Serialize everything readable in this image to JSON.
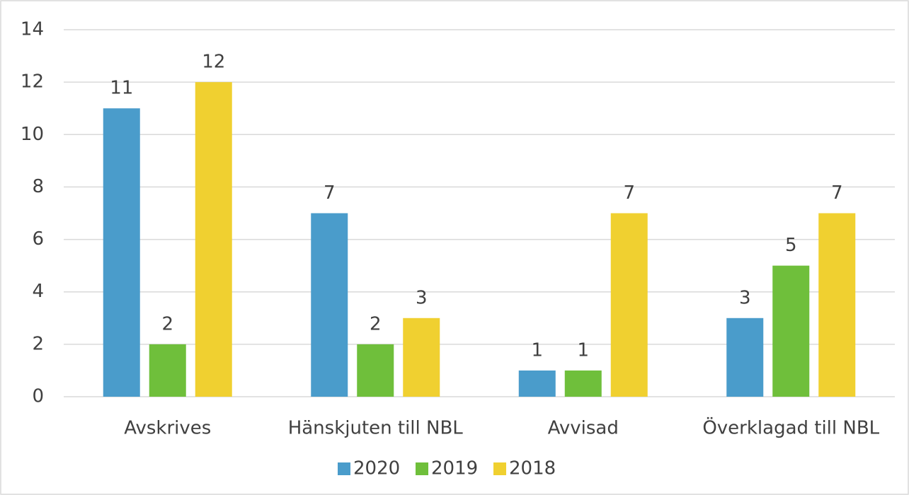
{
  "chart_data": {
    "type": "bar",
    "categories": [
      "Avskrives",
      "Hänskjuten till NBL",
      "Avvisad",
      "Överklagad till NBL"
    ],
    "series": [
      {
        "name": "2020",
        "color": "#4a9ccb",
        "values": [
          11,
          7,
          1,
          3
        ]
      },
      {
        "name": "2019",
        "color": "#6fbf3b",
        "values": [
          2,
          2,
          1,
          5
        ]
      },
      {
        "name": "2018",
        "color": "#f0d030",
        "values": [
          12,
          3,
          7,
          7
        ]
      }
    ],
    "ylim": [
      0,
      14
    ],
    "yticks": [
      0,
      2,
      4,
      6,
      8,
      10,
      12,
      14
    ],
    "grid": true,
    "legend": "bottom"
  }
}
